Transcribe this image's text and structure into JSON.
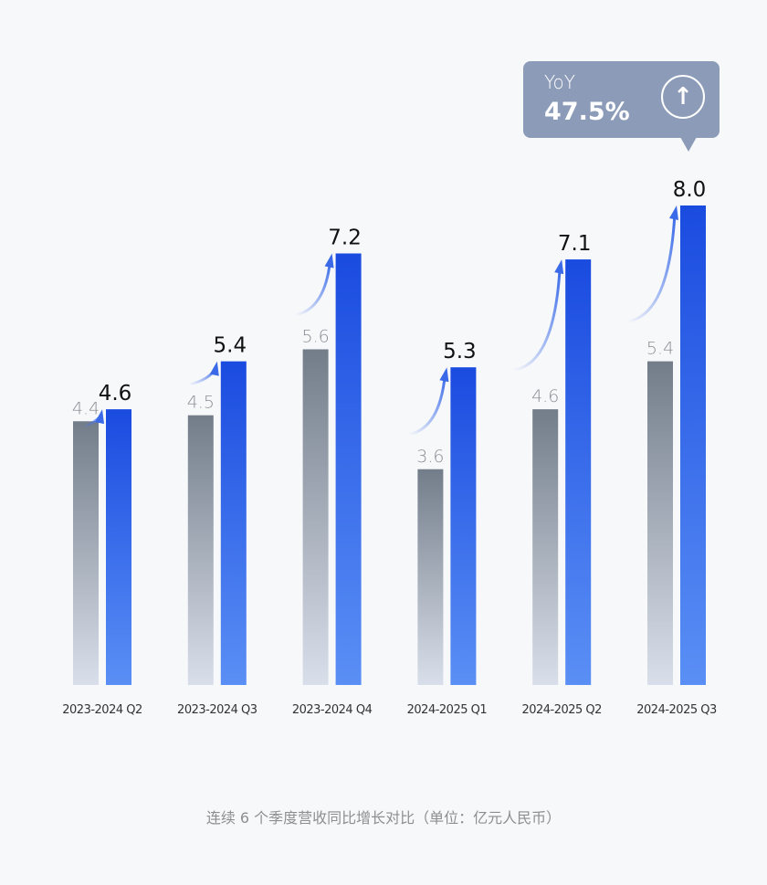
{
  "chart_data": {
    "type": "bar",
    "categories": [
      "2023-2024 Q2",
      "2023-2024 Q3",
      "2023-2024 Q4",
      "2024-2025 Q1",
      "2024-2025 Q2",
      "2024-2025 Q3"
    ],
    "series": [
      {
        "values": [
          4.4,
          4.5,
          5.6,
          3.6,
          4.6,
          5.4
        ],
        "color": "#737d8a"
      },
      {
        "values": [
          4.6,
          5.4,
          7.2,
          5.3,
          7.1,
          8.0
        ],
        "color": "#1a4fe0"
      }
    ],
    "ylim": [
      0,
      8.0
    ],
    "grid": false,
    "caption": "连续 6 个季度营收同比增长对比（单位：亿元人民币）"
  },
  "callout": {
    "label": "YoY",
    "value": "47.5%",
    "icon": "arrow-up-icon",
    "color": "#8b9bb8"
  }
}
